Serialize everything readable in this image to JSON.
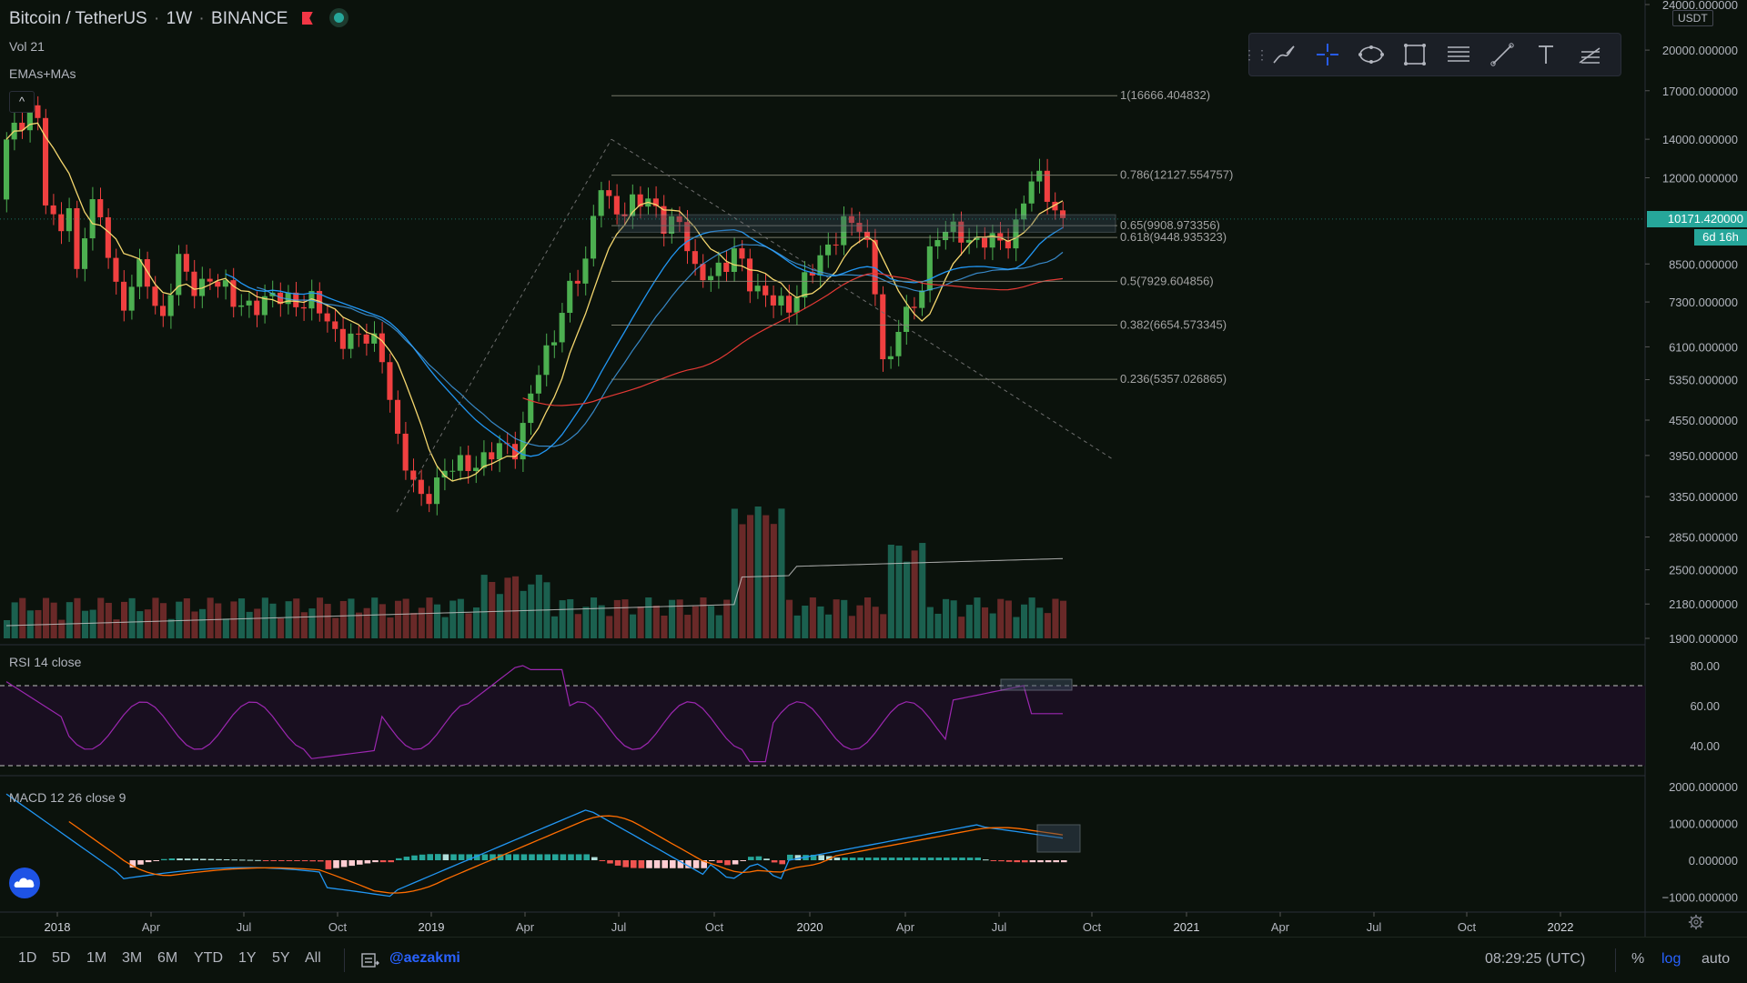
{
  "header": {
    "symbol": "Bitcoin / TetherUS",
    "interval": "1W",
    "exchange": "BINANCE",
    "vol_label": "Vol 21",
    "ma_label": "EMAs+MAs",
    "collapse_glyph": "^"
  },
  "colors": {
    "bg": "#0b120c",
    "up": "#26a69a",
    "down": "#ef5350",
    "bull_candle": "#4caf50",
    "bear_candle": "#f04040",
    "ema_fast": "#f5d76e",
    "ma_blue1": "#2196f3",
    "ma_blue2": "#42a5f5",
    "ma_red": "#e53935",
    "rsi": "#9c27b0",
    "macd": "#2196f3",
    "signal": "#ff6d00"
  },
  "price_axis": {
    "unit": "USDT",
    "scale": "log",
    "ticks": [
      "24000.000000",
      "20000.000000",
      "17000.000000",
      "14000.000000",
      "12000.000000",
      "10171.420000",
      "8500.000000",
      "7300.000000",
      "6100.000000",
      "5350.000000",
      "4550.000000",
      "3950.000000",
      "3350.000000",
      "2850.000000",
      "2500.000000",
      "2180.000000",
      "1900.000000"
    ],
    "last_price": "10171.420000",
    "countdown": "6d 16h"
  },
  "rsi": {
    "label": "RSI 14 close",
    "ticks": [
      "80.00",
      "60.00",
      "40.00"
    ],
    "upper": 70,
    "lower": 30
  },
  "macd": {
    "label": "MACD 12 26 close 9",
    "ticks": [
      "2000.000000",
      "1000.000000",
      "0.000000",
      "−1000.000000"
    ]
  },
  "time_axis": [
    "2018",
    "Apr",
    "Jul",
    "Oct",
    "2019",
    "Apr",
    "Jul",
    "Oct",
    "2020",
    "Apr",
    "Jul",
    "Oct",
    "2021",
    "Apr",
    "Jul",
    "Oct",
    "2022"
  ],
  "fibonacci": [
    {
      "label": "1(16666.404832)",
      "price": 16666.4
    },
    {
      "label": "0.786(12127.554757)",
      "price": 12127.55
    },
    {
      "label": "0.65(9908.973356)",
      "price": 9908.97
    },
    {
      "label": "0.618(9448.935323)",
      "price": 9448.94
    },
    {
      "label": "0.5(7929.604856)",
      "price": 7929.6
    },
    {
      "label": "0.382(6654.573345)",
      "price": 6654.57
    },
    {
      "label": "0.236(5357.026865)",
      "price": 5357.03
    }
  ],
  "toolbar": {
    "icons": [
      "brush-icon",
      "crosshair-icon",
      "ellipse-icon",
      "rectangle-icon",
      "fib-retracement-icon",
      "trend-line-icon",
      "text-icon",
      "pitchfork-icon"
    ]
  },
  "bottom": {
    "timeframes": [
      "1D",
      "5D",
      "1M",
      "3M",
      "6M",
      "YTD",
      "1Y",
      "5Y",
      "All"
    ],
    "author": "@aezakmi",
    "clock": "08:29:25 (UTC)",
    "modes": [
      "%",
      "log",
      "auto"
    ]
  }
}
